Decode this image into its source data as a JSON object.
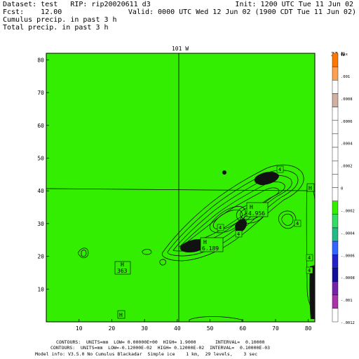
{
  "header": {
    "line1_left": "Dataset: test   RIP: rip20020611 d3",
    "line1_right": "Init: 1200 UTC Tue 11 Jun 02",
    "line2_left": "Fcst:    12.00",
    "line2_right": "Valid: 0000 UTC Wed 12 Jun 02 (1900 CDT Tue 11 Jun 02)",
    "line3": "Cumulus precip. in past 3 h",
    "line4": "Total precip. in past 3 h"
  },
  "map": {
    "top_label": "101 W",
    "lat_label": "37 N",
    "fill_color": "#33ee00",
    "x_ticks": [
      "10",
      "20",
      "30",
      "40",
      "50",
      "60",
      "70",
      "80"
    ],
    "y_ticks": [
      "10",
      "20",
      "30",
      "40",
      "50",
      "60",
      "70",
      "80"
    ],
    "markers": [
      {
        "kind": "H",
        "value": "363"
      },
      {
        "kind": "H",
        "value": "4.956"
      },
      {
        "kind": "H",
        "value": "6.189"
      },
      {
        "kind": "H",
        "value": ""
      },
      {
        "kind": "H",
        "value": ""
      }
    ],
    "contour_labels": [
      "4",
      "4",
      "4",
      "4",
      "4",
      "4"
    ]
  },
  "colorbar": {
    "colors": [
      "#ff7700",
      "#ffa050",
      "#ffffff",
      "#d0b0a0",
      "#ffffff",
      "#ffffff",
      "#ffffff",
      "#ffffff",
      "#ffffff",
      "#ffffff",
      "#ffffff",
      "#33ee00",
      "#33dd66",
      "#22bb88",
      "#3366ff",
      "#2222cc",
      "#111199",
      "#7722aa",
      "#aa33aa",
      "#ffffff"
    ],
    "labels": [
      "max",
      ".001",
      ".0008",
      ".0006",
      ".0004",
      ".0002",
      "0",
      "-.0002",
      "-.0004",
      "-.0006",
      "-.0008",
      "-.001",
      "-.0012"
    ]
  },
  "footer": {
    "line1": "CONTOURS:  UNITS=mm  LOW= 0.00000E+00  HIGH= 1.9000       INTERVAL=  0.10000",
    "line2": "CONTOURS:  UNITS=mm  LOW=-0.12000E-02  HIGH= 0.12000E-02  INTERVAL=  0.10000E-03",
    "line3": "Model info: V3.5.0 No Cumulus Blackadar  Simple ice    1 km,  29 levels,    3 sec"
  }
}
